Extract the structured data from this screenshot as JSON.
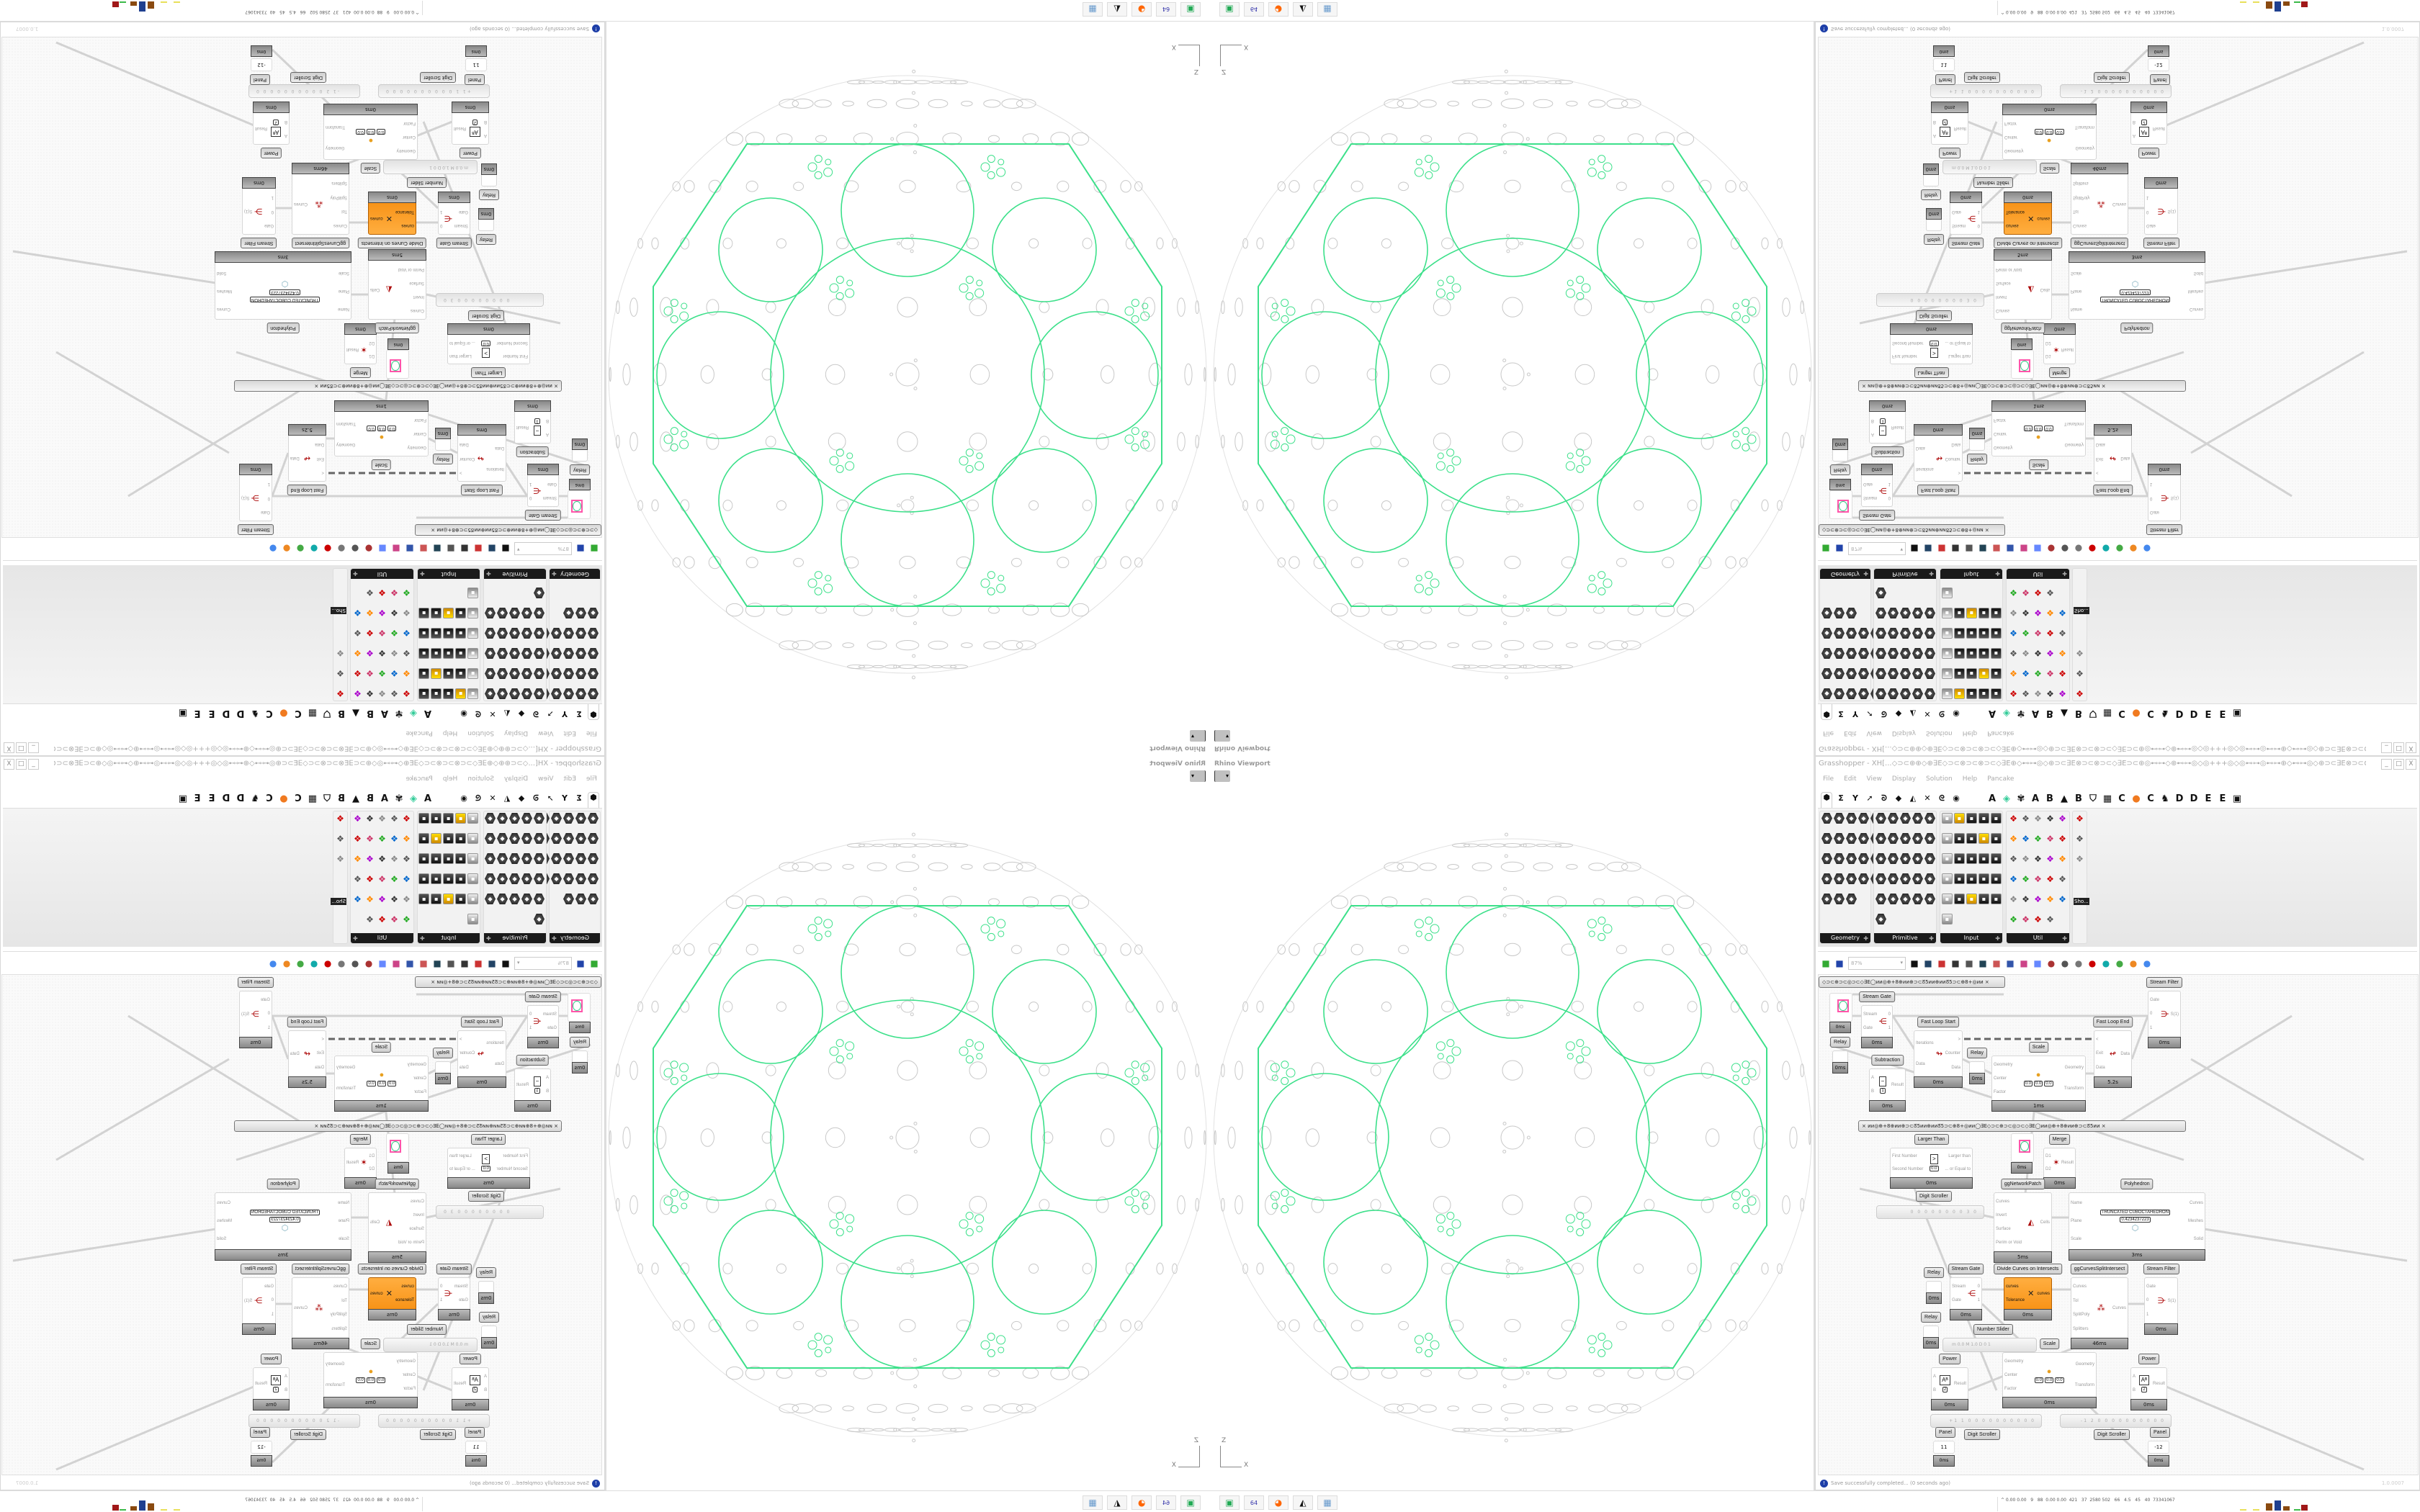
{
  "window": {
    "title": "Grasshopper - XH[...◇⊃⊂⊕⊕◇⊕∃E◇⊃⊂⊗⊃⊂⊗⊃⊂◇∃E⊕◇⊷⊶◎◇⊕⊃⊂∃E⊗⊃⊂⊗⊃⊂◇∃E⊃⊂⊕◎⊷⊶◇⊕⊷⊶◎◇◎+++◎◇◎⊷⊶◎⊷⊶⊕◇⊷⊶◎◇⊕⊃⊂∃E⊗⊃⊂⊗⊃⊂",
    "controls": [
      "_",
      "□",
      "X"
    ]
  },
  "menu": [
    "File",
    "Edit",
    "View",
    "Display",
    "Solution",
    "Help",
    "Pancake"
  ],
  "tabs": [
    {
      "name": "params",
      "glyph": "⬢"
    },
    {
      "name": "maths",
      "glyph": "Σ"
    },
    {
      "name": "sets",
      "glyph": "Y"
    },
    {
      "name": "vector",
      "glyph": "➚"
    },
    {
      "name": "curve",
      "glyph": "ᘐ"
    },
    {
      "name": "surface",
      "glyph": "◆"
    },
    {
      "name": "mesh",
      "glyph": "◭"
    },
    {
      "name": "intersect",
      "glyph": "✕"
    },
    {
      "name": "transform",
      "glyph": "ᘓ"
    },
    {
      "name": "display",
      "glyph": "◉"
    },
    {
      "name": "plugin-a",
      "glyph": "A"
    },
    {
      "name": "gem",
      "glyph": "◈"
    },
    {
      "name": "puzzle",
      "glyph": "✾"
    },
    {
      "name": "plugin-a2",
      "glyph": "A"
    },
    {
      "name": "plugin-b",
      "glyph": "B"
    },
    {
      "name": "mountain",
      "glyph": "▲"
    },
    {
      "name": "plugin-b2",
      "glyph": "B"
    },
    {
      "name": "shield",
      "glyph": "⛉"
    },
    {
      "name": "grid",
      "glyph": "▦"
    },
    {
      "name": "plugin-c",
      "glyph": "C"
    },
    {
      "name": "orange-circle",
      "glyph": "●"
    },
    {
      "name": "plugin-c2",
      "glyph": "C"
    },
    {
      "name": "rooster",
      "glyph": "♞"
    },
    {
      "name": "plugin-d",
      "glyph": "D"
    },
    {
      "name": "plugin-d2",
      "glyph": "D"
    },
    {
      "name": "plugin-e",
      "glyph": "E"
    },
    {
      "name": "plugin-e2",
      "glyph": "E"
    },
    {
      "name": "overflow",
      "glyph": "▣"
    }
  ],
  "ribbon": {
    "panels": [
      {
        "label": "Geometry",
        "style": "hex",
        "icons": [
          "point",
          "vector",
          "plane",
          "spiral",
          "curve-x",
          "box",
          "brep",
          "field",
          "arrow",
          "diamond",
          "text-tag",
          "wave",
          "circle",
          "cube",
          "geometry-cache",
          "atom",
          "curve",
          "mesh",
          "geometry-pipeline",
          "swirl",
          "twist",
          "net",
          "magnet"
        ]
      },
      {
        "label": "Primitive",
        "style": "hex",
        "icons": [
          "boolean",
          "domain",
          "matrix",
          "shape",
          "data-path",
          "path",
          "arrow",
          "time",
          "image",
          "complex",
          "scale",
          "uc",
          "hatch",
          "file",
          "integer",
          "number",
          "tree",
          "color",
          "decimal",
          "interval",
          "complex-c",
          "data",
          "text",
          "id",
          "material",
          "gradient"
        ]
      },
      {
        "label": "Input",
        "style": "sq",
        "icons": [
          "button",
          "toggle",
          "color-picker",
          "3dm",
          "obj",
          "graph",
          "gradient-mapper",
          "value-list",
          "xyz",
          "swatch",
          "switch",
          "slider-pink",
          "color-wheel",
          "img",
          "knob",
          "checker",
          "graph-mapper",
          "pdb",
          "scroller",
          "calendar",
          "control-knob",
          "shp",
          "list",
          "clock",
          "spectrum",
          "id-tag"
        ]
      },
      {
        "label": "Util",
        "style": "ut",
        "icons": [
          "cherry",
          "magnet",
          "arrow-right",
          "cluster",
          "text-a",
          "play",
          "record",
          "search",
          "swirl",
          "ball",
          "axes",
          "pencil",
          "timer",
          "seven",
          "flask",
          "tree",
          "filter",
          "egg",
          "key",
          "fx",
          "circle",
          "loop",
          "premiere",
          "decimal",
          "palette",
          "abc",
          "arrow",
          "gauge",
          "delete"
        ]
      },
      {
        "label": "Sho...",
        "style": "ut",
        "icons": [
          "goggles",
          "goggles-2",
          "presentation"
        ]
      }
    ],
    "panel_glyphs": {
      "hex": "◆",
      "sq": "▪",
      "ut": "❖"
    }
  },
  "toolbar": {
    "zoom": "87%",
    "icons": [
      "new-file",
      "save",
      "zoom-extents",
      "eye",
      "sketch-brush",
      "bake",
      "ghpython",
      "gha",
      "window",
      "search",
      "package",
      "balloon",
      "cross-wires",
      "sphere-preview",
      "wireframe",
      "red-box",
      "teal-shape",
      "green-shape",
      "half-sphere",
      "blue-sphere"
    ]
  },
  "canvas": {
    "groups": [
      "◇⊃⊂⊕⊃⊂◎⊃⊂◇∃E◯ᴎᴎ◎⊕+8⊕ᴎᴎ⊕⊃⊂ᘔ5ᴎᴎ⊕ᴎᴎᘔ5⊃⊂⊕8+◎ᴎᴎ  ×",
      "×  ᴎᴎ◎⊕+8⊕ᴎᴎ⊕⊃⊂ᘔ5ᴎᴎ⊕ᴎᴎᘔ5⊃⊂⊕8+◎ᴎᴎ◯∃E◇⊃⊂⊕⊃⊂◎⊃⊂◇∃E◯ᴎᴎ◎⊕+8⊕ᴎᴎ⊕⊃⊂ᘔ5ᴎᴎ  ×"
    ],
    "nodes": [
      {
        "title": "Stream Gate",
        "icon": "stream-gate",
        "inputs": [
          "Stream",
          "Gate"
        ],
        "outputs": [
          "0",
          "1"
        ],
        "time": "0ms"
      },
      {
        "title": "Fast Loop Start",
        "icon": "loop-start",
        "inputs": [
          "Iterations",
          "Data"
        ],
        "outputs": [
          ">",
          "Counter",
          "Data"
        ],
        "time": "0ms"
      },
      {
        "title": "Relay",
        "icon": "relay",
        "inputs": [],
        "outputs": [],
        "time": "0ms"
      },
      {
        "title": "Scale",
        "icon": "scale",
        "inputs": [
          "Geometry",
          "Center",
          "Factor"
        ],
        "outputs": [
          "Geometry",
          "Transform"
        ],
        "fields": [
          "0.0",
          "0.0",
          "0.0"
        ],
        "time": "1ms"
      },
      {
        "title": "Fast Loop End",
        "icon": "loop-end",
        "inputs": [
          "<",
          "Exit",
          "Data"
        ],
        "outputs": [
          "Data"
        ],
        "time": "5.2s"
      },
      {
        "title": "Stream Filter",
        "icon": "stream-filter",
        "inputs": [
          "Gate",
          "0",
          "1"
        ],
        "outputs": [
          "S(1)"
        ],
        "time": "0ms"
      },
      {
        "title": "Subtraction",
        "icon": "subtraction",
        "inputs": [
          "A",
          "B"
        ],
        "outputs": [
          "Result"
        ],
        "fields": [
          "1"
        ],
        "time": "0ms"
      },
      {
        "title": "Larger Than",
        "icon": "larger-than",
        "inputs": [
          "First Number",
          "Second Number"
        ],
        "outputs": [
          "Larger than",
          "... or Equal to"
        ],
        "fields": [
          "0.0"
        ],
        "time": "0ms"
      },
      {
        "title": "Merge",
        "icon": "merge",
        "inputs": [
          "D1",
          "D2"
        ],
        "outputs": [
          "Result"
        ],
        "time": "0ms"
      },
      {
        "title": "ggNetworkPatch",
        "icon": "network-patch",
        "inputs": [
          "Curves",
          "Invert",
          "Surface",
          "Perim or Void"
        ],
        "outputs": [
          "Cells"
        ],
        "time": "5ms"
      },
      {
        "title": "Polyhedron",
        "icon": "polyhedron",
        "inputs": [
          "Name",
          "Plane",
          "Scale"
        ],
        "outputs": [
          "Curves",
          "Meshes",
          "Solid"
        ],
        "fields": [
          "TRUNCATED CUBOCTAHEDRON",
          "0.4234237223"
        ],
        "time": "3ms"
      },
      {
        "title": "Stream Gate",
        "icon": "stream-gate",
        "inputs": [
          "Stream",
          "Gate"
        ],
        "outputs": [
          "0",
          "1"
        ],
        "time": "0ms"
      },
      {
        "title": "Divide Curves on Intersects",
        "icon": "divide-curves",
        "inputs": [
          "curves",
          "Tolerance"
        ],
        "outputs": [
          "curves"
        ],
        "time": "0ms"
      },
      {
        "title": "ggCurvesSplitIntersect",
        "icon": "split-intersect",
        "inputs": [
          "Curves",
          "Tol",
          "SplitPoly",
          "Splitters"
        ],
        "outputs": [
          "Curves"
        ],
        "time": "46ms"
      },
      {
        "title": "Stream Filter",
        "icon": "stream-filter",
        "inputs": [
          "Gate",
          "0",
          "1"
        ],
        "outputs": [
          "S(1)"
        ],
        "time": "0ms"
      },
      {
        "title": "Scale",
        "icon": "scale",
        "inputs": [
          "Geometry",
          "Center",
          "Factor"
        ],
        "outputs": [
          "Geometry",
          "Transform"
        ],
        "fields": [
          "0.0",
          "0.0",
          "0.0"
        ],
        "time": "0ms"
      },
      {
        "title": "Power",
        "icon": "power",
        "inputs": [
          "A",
          "B"
        ],
        "outputs": [
          "Result"
        ],
        "fields": [
          "2"
        ],
        "time": "0ms"
      },
      {
        "title": "Power",
        "icon": "power",
        "inputs": [
          "A",
          "B"
        ],
        "outputs": [
          "Result"
        ],
        "fields": [
          "2"
        ],
        "time": "0ms"
      },
      {
        "title": "Relay",
        "icon": "relay",
        "inputs": [],
        "outputs": [],
        "time": "0ms"
      },
      {
        "title": "Relay",
        "icon": "relay",
        "inputs": [],
        "outputs": [],
        "time": "0ms"
      },
      {
        "title": "Relay",
        "icon": "relay",
        "inputs": [],
        "outputs": [],
        "time": "0ms"
      }
    ],
    "digit_scrollers": [
      {
        "label": "Digit Scroller",
        "value": "0 0 0 0 0 0 0 0 3 0"
      },
      {
        "label": "Digit Scroller",
        "value": "+1 1 0 0 0 0 0 0 0 0 0 0"
      },
      {
        "label": "Digit Scroller",
        "value": "-1 2 0 0 0 0 0 0 0 0 0 0"
      }
    ],
    "number_slider": {
      "label": "Number Slider",
      "value": "m 0.0  M 1.0  D 0        1"
    },
    "panels": [
      {
        "label": "Panel",
        "value": "11",
        "time": "0ms"
      },
      {
        "label": "Panel",
        "value": "-12",
        "time": "0ms"
      }
    ],
    "preview_time": "0ms"
  },
  "status": {
    "message": "Save successfully completed... (0 seconds ago)",
    "version": "1.0.0007"
  },
  "viewport": {
    "label": "Rhino Viewport",
    "axes": {
      "x": "X",
      "z": "Z"
    },
    "colors": {
      "outline": "#3ce08a",
      "pattern": "#c8c8c8"
    }
  },
  "taskbar": {
    "apps": [
      {
        "name": "drive",
        "glyph": "▣"
      },
      {
        "name": "floppy",
        "glyph": "64"
      },
      {
        "name": "firefox",
        "glyph": "◕"
      },
      {
        "name": "rhino",
        "glyph": "◭"
      },
      {
        "name": "calculator",
        "glyph": "▦"
      }
    ],
    "stats": "^ 0.00 0.00   9   88  0.00 0.00  421   37  2580 502   66   4.5   45   40  73341067",
    "colors": [
      "#e8e05a",
      "#e8e05a",
      "#8a4a10",
      "#1f3f8f",
      "#8a4a10",
      "#3cba4a",
      "#a01818"
    ]
  }
}
